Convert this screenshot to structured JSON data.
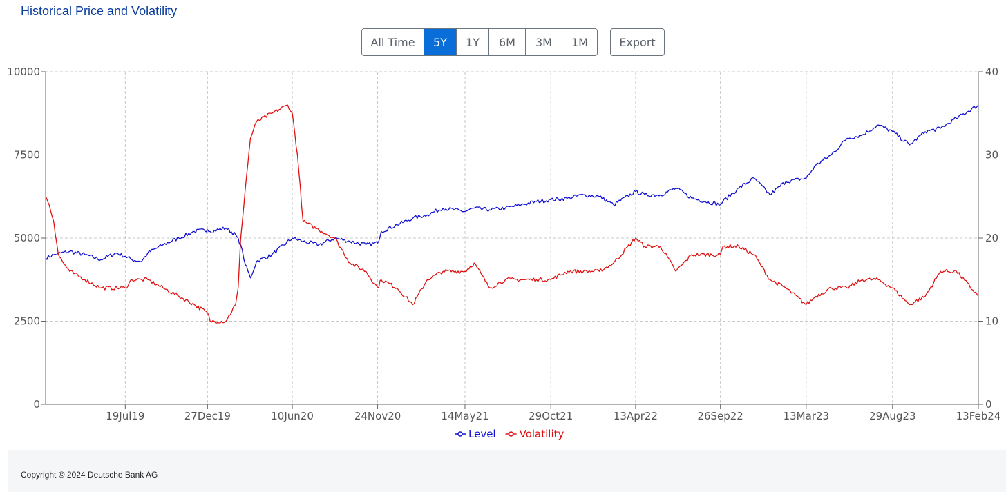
{
  "title": "Historical Price and Volatility",
  "range_buttons": [
    "All Time",
    "5Y",
    "1Y",
    "6M",
    "3M",
    "1M"
  ],
  "active_range": "5Y",
  "export_label": "Export",
  "footer": {
    "copyright": "Copyright © 2024 Deutsche Bank AG"
  },
  "colors": {
    "level": "#1010d0",
    "volatility": "#e01010",
    "title": "#0b3d9e",
    "active": "#0a6ed8"
  },
  "chart_data": {
    "type": "line",
    "grid": true,
    "legend_position": "bottom-center",
    "x_ticks": [
      "19Jul19",
      "27Dec19",
      "10Jun20",
      "24Nov20",
      "14May21",
      "29Oct21",
      "13Apr22",
      "26Sep22",
      "13Mar23",
      "29Aug23",
      "13Feb24"
    ],
    "x_range": [
      "13Feb19",
      "13Feb24"
    ],
    "y_left": {
      "ticks": [
        0,
        2500,
        5000,
        7500,
        10000
      ],
      "range": [
        0,
        10000
      ]
    },
    "y_right": {
      "ticks": [
        0,
        10,
        20,
        30,
        40
      ],
      "range": [
        0,
        40
      ]
    },
    "series": [
      {
        "name": "Level",
        "axis": "left",
        "color": "#1010d0",
        "x": [
          "13Feb19",
          "01Mar19",
          "01Apr19",
          "01May19",
          "01Jun19",
          "01Jul19",
          "19Jul19",
          "01Aug19",
          "20Aug19",
          "01Sep19",
          "01Oct19",
          "01Nov19",
          "01Dec19",
          "27Dec19",
          "01Jan20",
          "01Feb20",
          "20Feb20",
          "01Mar20",
          "10Mar20",
          "20Mar20",
          "01Apr20",
          "01May20",
          "10Jun20",
          "01Jul20",
          "01Aug20",
          "01Sep20",
          "01Oct20",
          "01Nov20",
          "24Nov20",
          "01Dec20",
          "01Jan21",
          "01Feb21",
          "01Mar21",
          "01Apr21",
          "14May21",
          "01Jun21",
          "01Jul21",
          "01Aug21",
          "01Sep21",
          "01Oct21",
          "29Oct21",
          "01Dec21",
          "01Jan22",
          "01Feb22",
          "01Mar22",
          "13Apr22",
          "01May22",
          "01Jun22",
          "01Jul22",
          "01Aug22",
          "26Sep22",
          "01Oct22",
          "01Nov22",
          "01Dec22",
          "01Jan23",
          "01Feb23",
          "13Mar23",
          "01Apr23",
          "01May23",
          "01Jun23",
          "01Jul23",
          "01Aug23",
          "29Aug23",
          "01Oct23",
          "01Nov23",
          "01Dec23",
          "01Jan24",
          "13Feb24"
        ],
        "values": [
          4400,
          4500,
          4600,
          4500,
          4350,
          4550,
          4450,
          4350,
          4300,
          4550,
          4800,
          5000,
          5200,
          5250,
          5200,
          5300,
          5100,
          4800,
          4200,
          3800,
          4300,
          4500,
          5000,
          4900,
          4800,
          5000,
          4900,
          4800,
          4850,
          5200,
          5400,
          5600,
          5700,
          5900,
          5800,
          5900,
          5850,
          5900,
          6000,
          6100,
          6150,
          6200,
          6300,
          6250,
          6000,
          6400,
          6300,
          6300,
          6500,
          6200,
          6000,
          6100,
          6500,
          6800,
          6300,
          6700,
          6800,
          7200,
          7500,
          8000,
          8100,
          8400,
          8200,
          7800,
          8200,
          8300,
          8600,
          9000
        ]
      },
      {
        "name": "Volatility",
        "axis": "right",
        "color": "#e01010",
        "x": [
          "13Feb19",
          "20Feb19",
          "01Mar19",
          "10Mar19",
          "20Mar19",
          "01Apr19",
          "01May19",
          "01Jun19",
          "19Jul19",
          "01Aug19",
          "20Aug19",
          "01Sep19",
          "01Oct19",
          "01Nov19",
          "01Dec19",
          "27Dec19",
          "01Jan20",
          "01Feb20",
          "20Feb20",
          "25Feb20",
          "01Mar20",
          "10Mar20",
          "20Mar20",
          "01Apr20",
          "01May20",
          "01Jun20",
          "10Jun20",
          "20Jun20",
          "01Jul20",
          "01Aug20",
          "01Sep20",
          "01Oct20",
          "01Nov20",
          "24Nov20",
          "01Dec20",
          "01Jan21",
          "01Feb21",
          "01Mar21",
          "01Apr21",
          "14May21",
          "01Jun21",
          "01Jul21",
          "01Aug21",
          "01Sep21",
          "01Oct21",
          "29Oct21",
          "01Dec21",
          "01Jan22",
          "01Feb22",
          "01Mar22",
          "13Apr22",
          "01May22",
          "01Jun22",
          "01Jul22",
          "01Aug22",
          "26Sep22",
          "01Oct22",
          "01Nov22",
          "01Dec22",
          "01Jan23",
          "01Feb23",
          "13Mar23",
          "01Apr23",
          "01May23",
          "01Jun23",
          "01Jul23",
          "01Aug23",
          "29Aug23",
          "01Oct23",
          "01Nov23",
          "01Dec23",
          "01Jan24",
          "13Feb24"
        ],
        "values": [
          25,
          24,
          22,
          18,
          17,
          16,
          15,
          14,
          14,
          15,
          15,
          15,
          14,
          13,
          12,
          11,
          10,
          10,
          12,
          14,
          20,
          26,
          32,
          34,
          35,
          36,
          35,
          30,
          22,
          21,
          20,
          17,
          16,
          14,
          15,
          14,
          12,
          15,
          16,
          16,
          17,
          14,
          15,
          15,
          15,
          15,
          16,
          16,
          16,
          17,
          20,
          19,
          19,
          16,
          18,
          18,
          19,
          19,
          18,
          15,
          14,
          12,
          13,
          14,
          14,
          15,
          15,
          14,
          12,
          13,
          16,
          16,
          13
        ]
      }
    ]
  }
}
